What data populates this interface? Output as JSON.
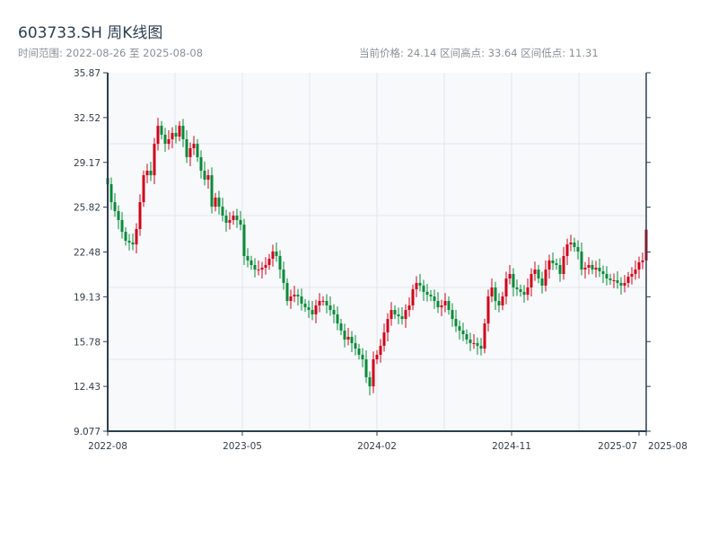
{
  "header": {
    "title": "603733.SH 周K线图",
    "range": "时间范围: 2022-08-26 至 2025-08-08",
    "stats": "当前价格: 24.14  区间高点: 33.64  区间低点: 11.31"
  },
  "chart_data": {
    "type": "candlestick",
    "title": "603733.SH 周K线图",
    "xlabel": "",
    "ylabel": "",
    "ylim": [
      9.077,
      35.87
    ],
    "y_ticks": [
      "9.077",
      "12.43",
      "15.78",
      "19.13",
      "22.48",
      "25.82",
      "29.17",
      "32.52",
      "35.87"
    ],
    "x_ticks": [
      {
        "label": "2022-08",
        "week": 0
      },
      {
        "label": "2023-05",
        "week": 37.5
      },
      {
        "label": "2024-02",
        "week": 75
      },
      {
        "label": "2024-11",
        "week": 112.5
      },
      {
        "label": "2025-07",
        "week": 148
      },
      {
        "label": "2025-08",
        "week": 150
      }
    ],
    "first_open": 28.0,
    "close": [
      27.54,
      26.2,
      25.53,
      24.86,
      23.98,
      23.31,
      23.18,
      23.04,
      24.19,
      26.2,
      28.21,
      28.55,
      28.21,
      30.56,
      31.91,
      31.24,
      30.56,
      30.9,
      31.37,
      31.1,
      31.91,
      30.9,
      29.56,
      30.23,
      30.56,
      29.56,
      28.55,
      27.88,
      28.21,
      25.86,
      26.54,
      25.86,
      25.19,
      24.66,
      24.86,
      25.19,
      24.86,
      24.52,
      22.17,
      21.84,
      21.5,
      21.16,
      21.16,
      21.3,
      21.5,
      21.97,
      22.51,
      22.17,
      21.16,
      20.16,
      18.81,
      19.15,
      19.28,
      19.15,
      18.61,
      18.34,
      18.14,
      17.81,
      18.48,
      18.81,
      18.81,
      18.48,
      18.14,
      17.81,
      17.13,
      16.6,
      15.93,
      16.13,
      15.66,
      15.25,
      14.79,
      14.45,
      13.11,
      12.43,
      14.45,
      14.79,
      15.46,
      16.46,
      17.47,
      18.14,
      17.81,
      17.67,
      17.47,
      18.14,
      18.48,
      19.69,
      20.16,
      19.96,
      19.49,
      19.28,
      19.15,
      18.81,
      18.34,
      18.48,
      18.81,
      18.14,
      17.47,
      16.92,
      16.6,
      16.33,
      15.93,
      15.66,
      15.66,
      15.46,
      15.25,
      17.13,
      19.15,
      19.82,
      18.81,
      18.48,
      19.15,
      20.49,
      20.83,
      19.82,
      19.69,
      19.49,
      19.28,
      19.82,
      20.83,
      21.16,
      20.49,
      19.96,
      21.16,
      21.84,
      21.63,
      21.5,
      20.83,
      22.17,
      23.04,
      23.18,
      22.84,
      22.51,
      21.16,
      21.3,
      21.5,
      21.16,
      21.3,
      21.03,
      20.83,
      20.49,
      20.36,
      20.36,
      20.16,
      19.96,
      20.16,
      20.63,
      20.83,
      21.16,
      21.7,
      21.84,
      24.14
    ],
    "range_high": 33.64,
    "range_low": 11.31,
    "colors": {
      "up": "#d0021b",
      "down": "#0a8a3a",
      "grid": "#e3e6ea",
      "axis": "#2c3e50",
      "bg": "#f7f9fb"
    }
  }
}
